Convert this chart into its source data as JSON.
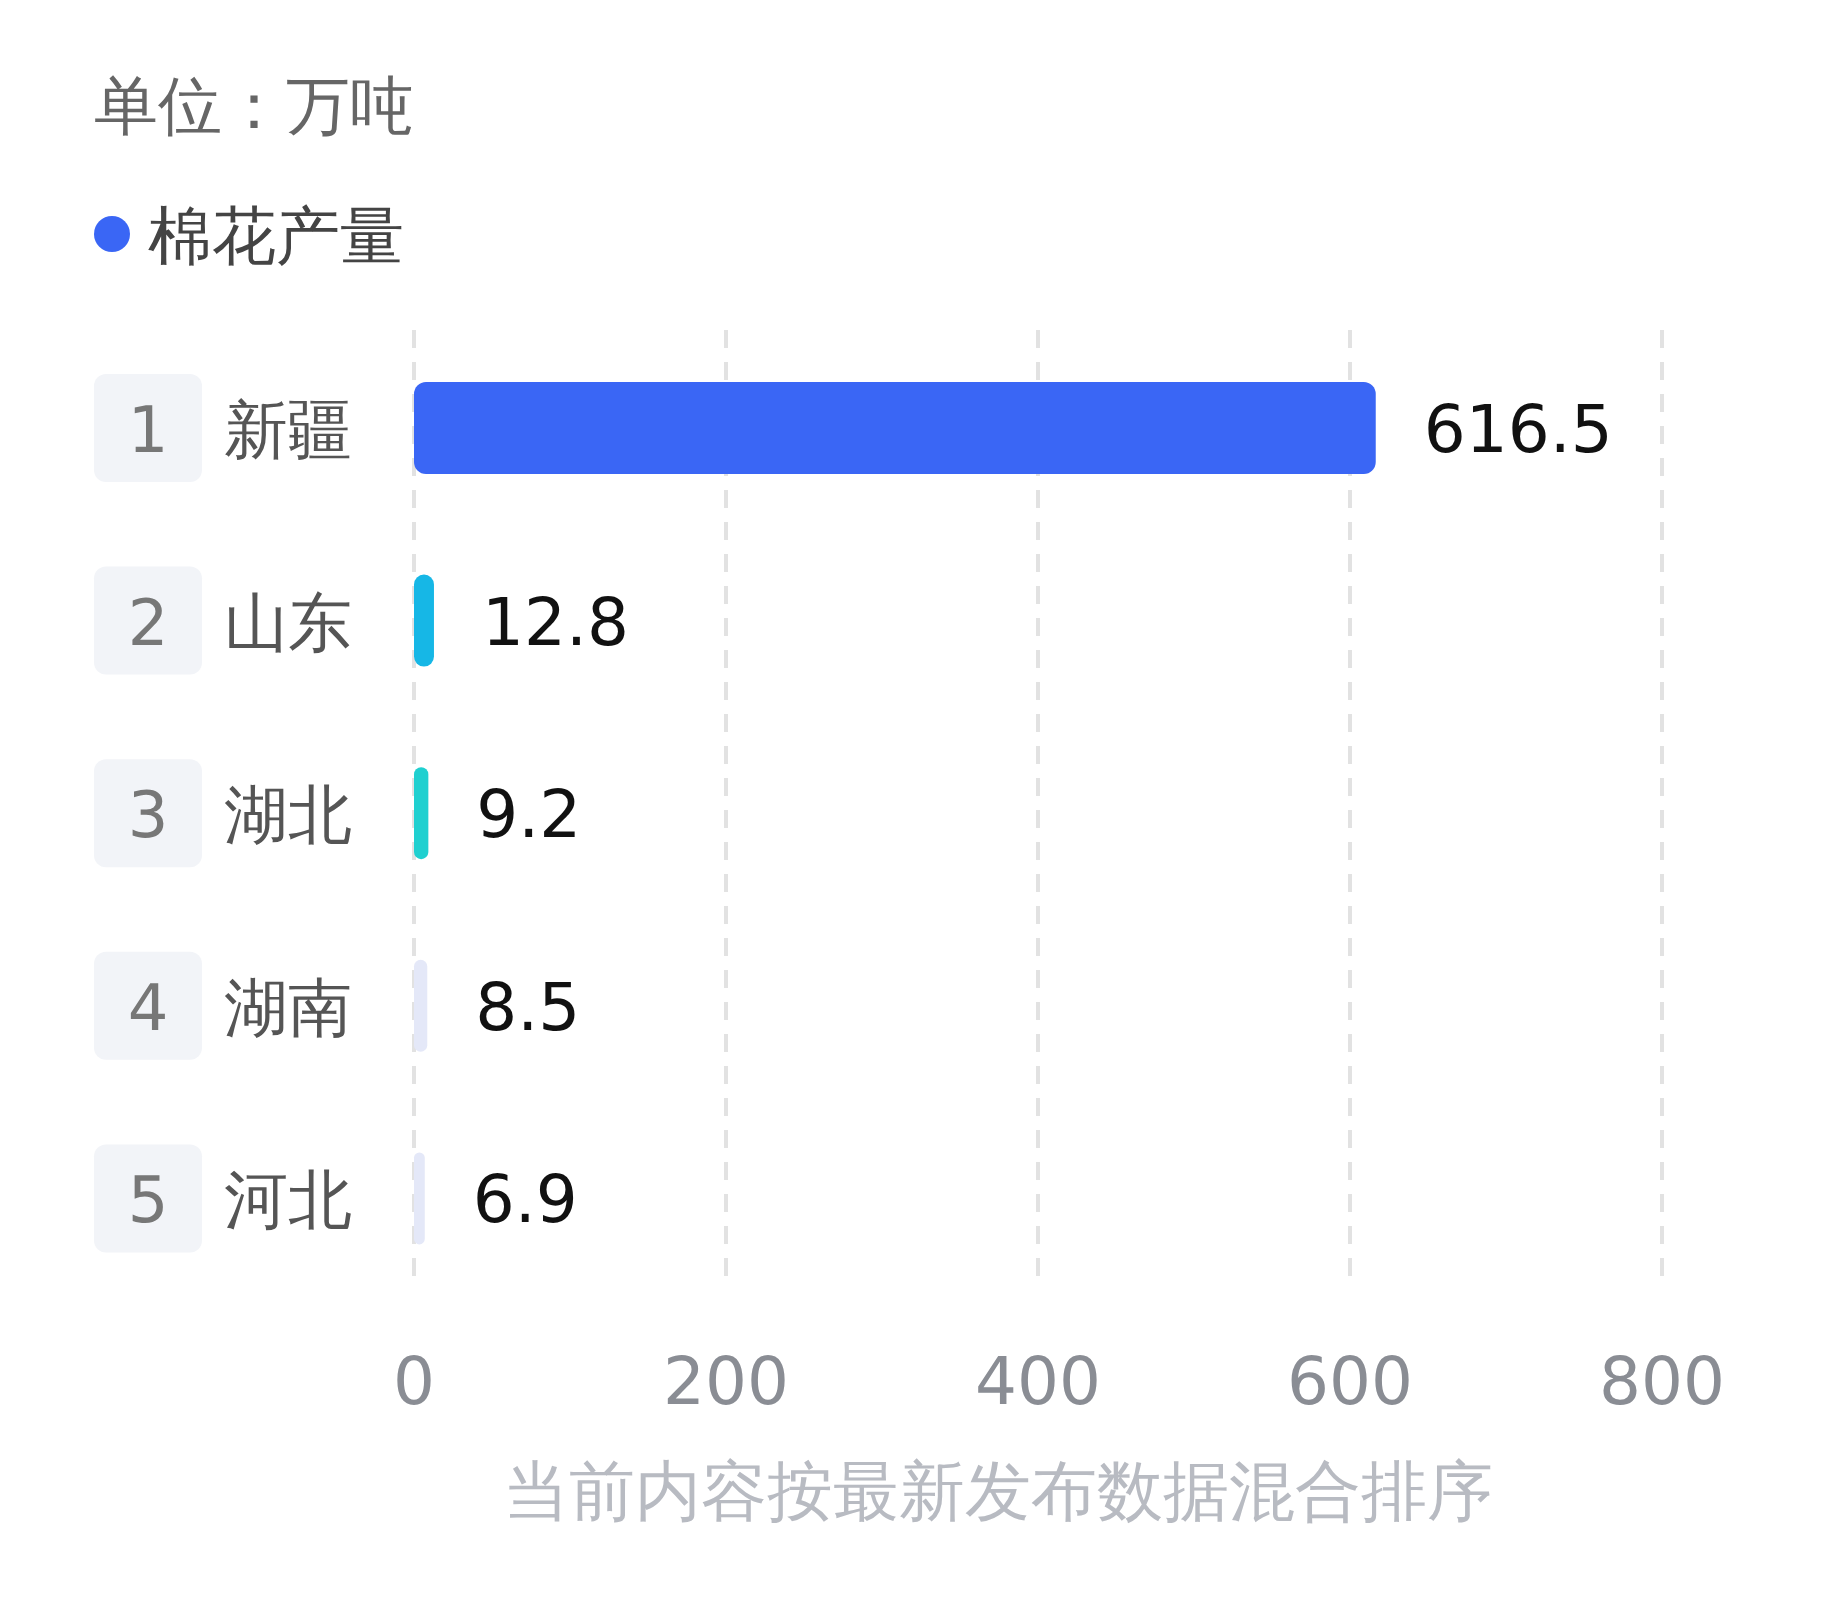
{
  "chart_data": {
    "type": "bar",
    "orientation": "horizontal",
    "title": "单位：万吨",
    "categories": [
      "1 新疆",
      "2 山东",
      "3 湖北",
      "4 湖南",
      "5 河北"
    ],
    "series": [
      {
        "name": "棉花产量",
        "color": "#3a66f5",
        "colors": [
          "#3a66f5",
          "#16b7e6",
          "#1fd0d0",
          "#e4e8f8",
          "#e4e8f8"
        ],
        "values": [
          616.5,
          12.8,
          9.2,
          8.5,
          6.9
        ]
      }
    ],
    "xlim": [
      0,
      800
    ],
    "xticks": [
      0,
      200,
      400,
      600,
      800
    ],
    "grid": "x",
    "legend": "top left",
    "data_labels": true,
    "annotations": [
      "当前内容按最新发布数据混合排序"
    ]
  }
}
